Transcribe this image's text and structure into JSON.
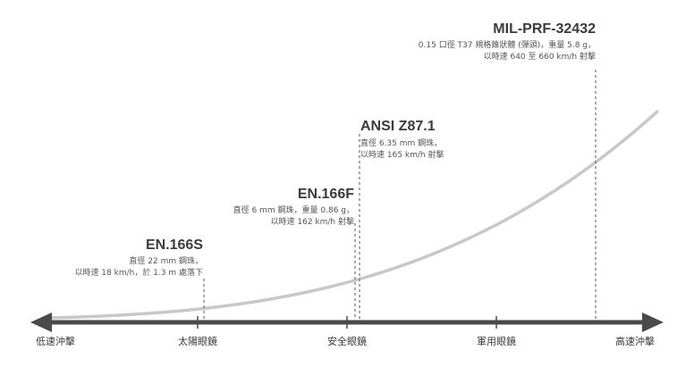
{
  "axis": {
    "left_label": "低速沖擊",
    "right_label": "高速沖擊",
    "categories": [
      "太陽眼鏡",
      "安全眼鏡",
      "軍用眼鏡"
    ]
  },
  "standards": [
    {
      "id": "en166s",
      "title": "EN.166S",
      "lines": [
        "直徑 22 mm 鋼珠，",
        "以時速 18 km/h，於 1.3 m 處落下"
      ]
    },
    {
      "id": "en166f",
      "title": "EN.166F",
      "lines": [
        "直徑 6 mm 鋼珠，重量 0.86 g，",
        "以時速 162 km/h 射擊"
      ]
    },
    {
      "id": "ansiz87",
      "title": "ANSI Z87.1",
      "lines": [
        "直徑 6.35 mm 鋼珠，",
        "以時速 165 km/h 射擊"
      ]
    },
    {
      "id": "milprf",
      "title": "MIL-PRF-32432",
      "lines": [
        "0.15 口徑 T37 規格錐狀體 (彈頭)，重量 5.8 g，",
        "以時速 640 至 660 km/h 射擊"
      ]
    }
  ],
  "colors": {
    "axis": "#4a4a4a",
    "curve": "#c8c8c8",
    "marker": "#555555"
  }
}
